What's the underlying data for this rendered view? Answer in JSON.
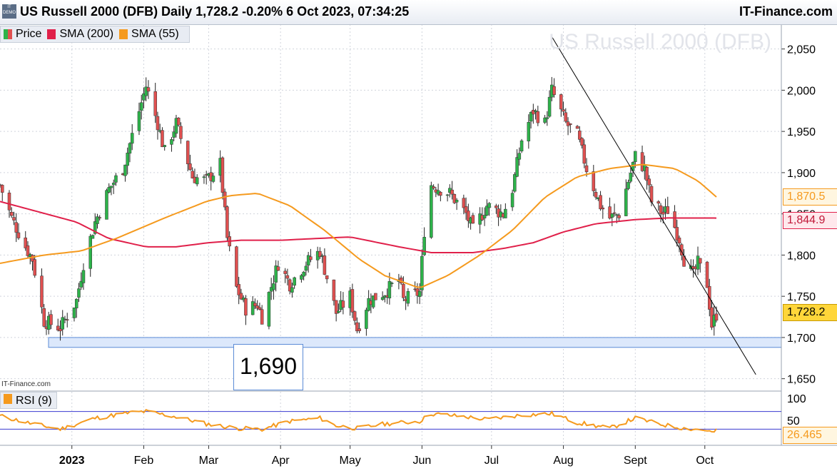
{
  "header": {
    "logo_text": "IT DEMO",
    "title": "US Russell 2000 (DFB) Daily 1,728.2 -0.20% 6 Oct 2023, 07:34:25",
    "brand": "IT-Finance.com"
  },
  "legend": {
    "price": "Price",
    "sma200": "SMA (200)",
    "sma55": "SMA (55)"
  },
  "watermark": "US Russell 2000 (DFB)",
  "small_brand": "IT-Finance.com",
  "support_label": "1,690",
  "rsi_legend": "RSI (9)",
  "price_tags": {
    "sma55": "1,870.5",
    "sma200": "1,844.9",
    "last": "1,728.2",
    "rsi": "26.465"
  },
  "colors": {
    "up": "#2db34a",
    "down": "#e05050",
    "sma200": "#e0204a",
    "sma55": "#f59a1e",
    "rsi": "#f59a1e",
    "trendline": "#000000",
    "support_zone": "#dce8fb",
    "support_border": "#5b8bd6"
  },
  "chart_data": [
    {
      "type": "candlestick",
      "title": "US Russell 2000 (DFB)",
      "x_tick_labels": [
        "2023",
        "Feb",
        "Mar",
        "Apr",
        "May",
        "Jun",
        "Jul",
        "Aug",
        "Sept",
        "Oct"
      ],
      "y_tick_labels": [
        "2,050",
        "2,000",
        "1,950",
        "1,900",
        "1,850",
        "1,800",
        "1,750",
        "1,700",
        "1,650"
      ],
      "ylim": [
        1635,
        2080
      ],
      "support_zone": [
        1688,
        1700
      ],
      "trendline": {
        "from": [
          "2023-07-27",
          2065
        ],
        "to": [
          "2023-10-23",
          1655
        ]
      },
      "last_close": 1728.2,
      "sma55_last": 1870.5,
      "sma200_last": 1844.9,
      "series": [
        {
          "name": "Price",
          "keypoints": [
            [
              "2022-12-01",
              1885
            ],
            [
              "2022-12-06",
              1845
            ],
            [
              "2022-12-12",
              1810
            ],
            [
              "2022-12-15",
              1795
            ],
            [
              "2022-12-20",
              1720
            ],
            [
              "2022-12-27",
              1712
            ],
            [
              "2023-01-03",
              1745
            ],
            [
              "2023-01-06",
              1790
            ],
            [
              "2023-01-11",
              1840
            ],
            [
              "2023-01-17",
              1880
            ],
            [
              "2023-01-23",
              1905
            ],
            [
              "2023-01-27",
              1945
            ],
            [
              "2023-02-02",
              2005
            ],
            [
              "2023-02-07",
              1960
            ],
            [
              "2023-02-10",
              1925
            ],
            [
              "2023-02-15",
              1960
            ],
            [
              "2023-02-22",
              1895
            ],
            [
              "2023-02-28",
              1890
            ],
            [
              "2023-03-06",
              1910
            ],
            [
              "2023-03-09",
              1820
            ],
            [
              "2023-03-13",
              1760
            ],
            [
              "2023-03-17",
              1735
            ],
            [
              "2023-03-22",
              1740
            ],
            [
              "2023-03-24",
              1725
            ],
            [
              "2023-03-31",
              1790
            ],
            [
              "2023-04-05",
              1765
            ],
            [
              "2023-04-12",
              1790
            ],
            [
              "2023-04-18",
              1805
            ],
            [
              "2023-04-25",
              1730
            ],
            [
              "2023-05-01",
              1750
            ],
            [
              "2023-05-04",
              1710
            ],
            [
              "2023-05-09",
              1745
            ],
            [
              "2023-05-16",
              1755
            ],
            [
              "2023-05-22",
              1770
            ],
            [
              "2023-05-24",
              1745
            ],
            [
              "2023-05-31",
              1755
            ],
            [
              "2023-06-02",
              1830
            ],
            [
              "2023-06-05",
              1885
            ],
            [
              "2023-06-13",
              1875
            ],
            [
              "2023-06-20",
              1850
            ],
            [
              "2023-06-23",
              1830
            ],
            [
              "2023-06-29",
              1860
            ],
            [
              "2023-07-06",
              1850
            ],
            [
              "2023-07-10",
              1880
            ],
            [
              "2023-07-14",
              1940
            ],
            [
              "2023-07-19",
              1975
            ],
            [
              "2023-07-24",
              1960
            ],
            [
              "2023-07-27",
              2000
            ],
            [
              "2023-08-02",
              1960
            ],
            [
              "2023-08-07",
              1945
            ],
            [
              "2023-08-11",
              1905
            ],
            [
              "2023-08-17",
              1860
            ],
            [
              "2023-08-21",
              1845
            ],
            [
              "2023-08-25",
              1850
            ],
            [
              "2023-08-29",
              1890
            ],
            [
              "2023-09-01",
              1920
            ],
            [
              "2023-09-05",
              1905
            ],
            [
              "2023-09-08",
              1865
            ],
            [
              "2023-09-13",
              1850
            ],
            [
              "2023-09-15",
              1855
            ],
            [
              "2023-09-20",
              1820
            ],
            [
              "2023-09-22",
              1795
            ],
            [
              "2023-09-26",
              1775
            ],
            [
              "2023-09-28",
              1790
            ],
            [
              "2023-10-02",
              1765
            ],
            [
              "2023-10-04",
              1715
            ],
            [
              "2023-10-06",
              1728.2
            ]
          ]
        },
        {
          "name": "SMA (200)",
          "keypoints": [
            [
              "2022-12-01",
              1865
            ],
            [
              "2023-01-03",
              1840
            ],
            [
              "2023-01-17",
              1820
            ],
            [
              "2023-02-02",
              1810
            ],
            [
              "2023-02-15",
              1810
            ],
            [
              "2023-03-01",
              1815
            ],
            [
              "2023-03-15",
              1818
            ],
            [
              "2023-04-01",
              1818
            ],
            [
              "2023-05-01",
              1822
            ],
            [
              "2023-05-22",
              1810
            ],
            [
              "2023-06-05",
              1803
            ],
            [
              "2023-06-23",
              1803
            ],
            [
              "2023-07-06",
              1808
            ],
            [
              "2023-07-19",
              1815
            ],
            [
              "2023-08-01",
              1828
            ],
            [
              "2023-08-15",
              1838
            ],
            [
              "2023-09-01",
              1843
            ],
            [
              "2023-09-15",
              1845
            ],
            [
              "2023-10-06",
              1844.9
            ]
          ]
        },
        {
          "name": "SMA (55)",
          "keypoints": [
            [
              "2022-12-01",
              1790
            ],
            [
              "2022-12-20",
              1800
            ],
            [
              "2023-01-05",
              1805
            ],
            [
              "2023-01-20",
              1820
            ],
            [
              "2023-02-10",
              1845
            ],
            [
              "2023-02-28",
              1865
            ],
            [
              "2023-03-10",
              1872
            ],
            [
              "2023-03-22",
              1875
            ],
            [
              "2023-04-05",
              1860
            ],
            [
              "2023-04-20",
              1830
            ],
            [
              "2023-05-05",
              1795
            ],
            [
              "2023-05-16",
              1775
            ],
            [
              "2023-05-31",
              1760
            ],
            [
              "2023-06-12",
              1775
            ],
            [
              "2023-06-26",
              1800
            ],
            [
              "2023-07-10",
              1830
            ],
            [
              "2023-07-24",
              1870
            ],
            [
              "2023-08-07",
              1895
            ],
            [
              "2023-08-21",
              1905
            ],
            [
              "2023-09-04",
              1910
            ],
            [
              "2023-09-18",
              1905
            ],
            [
              "2023-09-28",
              1890
            ],
            [
              "2023-10-06",
              1870.5
            ]
          ]
        }
      ]
    },
    {
      "type": "line",
      "title": "RSI (9)",
      "y_tick_labels": [
        "100",
        "50"
      ],
      "reference_lines": [
        70,
        30
      ],
      "last_value": 26.465,
      "series": [
        {
          "name": "RSI (9)",
          "keypoints": [
            [
              "2022-12-01",
              60
            ],
            [
              "2022-12-15",
              42
            ],
            [
              "2022-12-27",
              30
            ],
            [
              "2023-01-11",
              55
            ],
            [
              "2023-01-27",
              68
            ],
            [
              "2023-02-02",
              70
            ],
            [
              "2023-02-15",
              58
            ],
            [
              "2023-02-28",
              42
            ],
            [
              "2023-03-13",
              32
            ],
            [
              "2023-03-24",
              30
            ],
            [
              "2023-04-05",
              48
            ],
            [
              "2023-04-18",
              55
            ],
            [
              "2023-04-25",
              38
            ],
            [
              "2023-05-04",
              32
            ],
            [
              "2023-05-16",
              42
            ],
            [
              "2023-05-31",
              48
            ],
            [
              "2023-06-05",
              65
            ],
            [
              "2023-06-20",
              58
            ],
            [
              "2023-06-29",
              52
            ],
            [
              "2023-07-14",
              62
            ],
            [
              "2023-07-27",
              65
            ],
            [
              "2023-08-07",
              45
            ],
            [
              "2023-08-21",
              32
            ],
            [
              "2023-09-01",
              55
            ],
            [
              "2023-09-13",
              40
            ],
            [
              "2023-09-22",
              32
            ],
            [
              "2023-10-02",
              28
            ],
            [
              "2023-10-04",
              22
            ],
            [
              "2023-10-06",
              26.465
            ]
          ]
        }
      ]
    }
  ]
}
